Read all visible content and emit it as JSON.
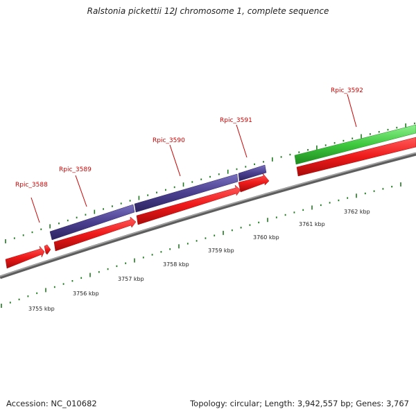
{
  "title": "Ralstonia pickettii 12J chromosome 1, complete sequence",
  "footer": {
    "accession": "Accession: NC_010682",
    "summary": "Topology: circular; Length: 3,942,557 bp; Genes: 3,767"
  },
  "colors": {
    "cds": "#e8141c",
    "purple_feature": "#4a3f8f",
    "green_feature": "#3ec93e",
    "backbone": "#7a7a7a",
    "tick": "#1f7a1f",
    "label": "#cc0000"
  },
  "genes": [
    {
      "name": "Rpic_3588"
    },
    {
      "name": "Rpic_3589"
    },
    {
      "name": "Rpic_3590"
    },
    {
      "name": "Rpic_3591"
    },
    {
      "name": "Rpic_3592"
    }
  ],
  "kbp_labels": [
    "3755 kbp",
    "3756 kbp",
    "3757 kbp",
    "3758 kbp",
    "3759 kbp",
    "3760 kbp",
    "3761 kbp",
    "3762 kbp"
  ]
}
